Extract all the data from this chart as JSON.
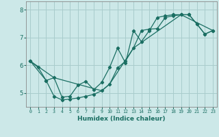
{
  "xlabel": "Humidex (Indice chaleur)",
  "bg_color": "#cce8e8",
  "grid_color": "#a8cccc",
  "line_color": "#1a6e62",
  "spine_color": "#888888",
  "xlim": [
    -0.5,
    23.5
  ],
  "ylim": [
    4.5,
    8.3
  ],
  "yticks": [
    5,
    6,
    7,
    8
  ],
  "xticks": [
    0,
    1,
    2,
    3,
    4,
    5,
    6,
    7,
    8,
    9,
    10,
    11,
    12,
    13,
    14,
    15,
    16,
    17,
    18,
    19,
    20,
    21,
    22,
    23
  ],
  "line1_x": [
    0,
    1,
    2,
    3,
    4,
    5,
    6,
    7,
    8,
    9,
    10,
    11,
    12,
    13,
    14,
    15,
    16,
    17,
    18,
    19,
    20,
    21,
    22,
    23
  ],
  "line1_y": [
    6.15,
    5.92,
    5.45,
    4.88,
    4.75,
    4.78,
    4.82,
    4.88,
    4.95,
    5.08,
    5.32,
    5.9,
    6.15,
    6.62,
    7.25,
    7.3,
    7.32,
    7.72,
    7.78,
    7.82,
    7.82,
    7.48,
    7.12,
    7.25
  ],
  "line2_x": [
    0,
    2,
    3,
    4,
    5,
    6,
    7,
    8,
    9,
    10,
    11,
    12,
    13,
    14,
    15,
    16,
    17,
    18,
    19,
    20,
    21,
    22,
    23
  ],
  "line2_y": [
    6.15,
    5.45,
    5.55,
    4.85,
    4.88,
    5.28,
    5.42,
    5.12,
    5.38,
    5.92,
    6.62,
    6.08,
    7.25,
    6.85,
    7.25,
    7.72,
    7.78,
    7.82,
    7.82,
    7.82,
    7.48,
    7.12,
    7.25
  ],
  "line3_x": [
    0,
    3,
    9,
    10,
    13,
    19,
    23
  ],
  "line3_y": [
    6.15,
    5.55,
    5.08,
    5.32,
    6.62,
    7.82,
    7.25
  ]
}
